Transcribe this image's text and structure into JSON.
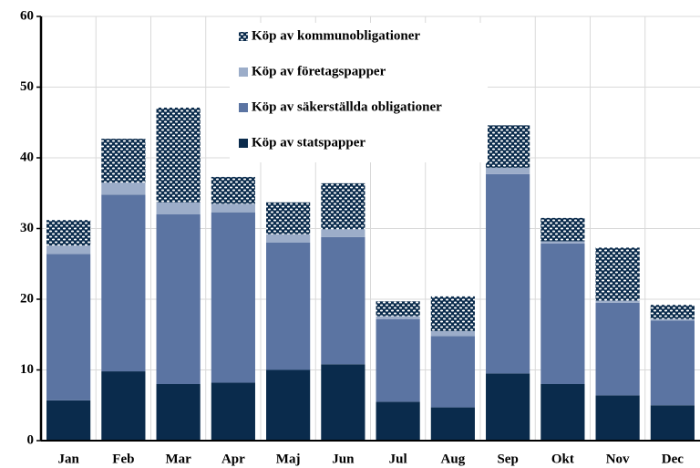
{
  "chart_data": {
    "type": "stacked_bar",
    "categories": [
      "Jan",
      "Feb",
      "Mar",
      "Apr",
      "Maj",
      "Jun",
      "Jul",
      "Aug",
      "Sep",
      "Okt",
      "Nov",
      "Dec"
    ],
    "series": [
      {
        "name": "Köp av statspapper",
        "color": "#0a2b4c",
        "values": [
          5.7,
          9.8,
          8.0,
          8.2,
          10.0,
          10.8,
          5.5,
          4.7,
          9.5,
          8.0,
          6.4,
          5.0
        ]
      },
      {
        "name": "Köp av säkerställda obligationer",
        "color": "#5b74a2",
        "values": [
          20.7,
          25.0,
          24.0,
          24.1,
          18.0,
          18.0,
          11.7,
          10.1,
          28.2,
          19.9,
          13.1,
          12.0
        ]
      },
      {
        "name": "Köp av företagspapper",
        "color": "#9cadc9",
        "values": [
          1.2,
          1.7,
          1.7,
          1.2,
          1.2,
          1.1,
          0.4,
          0.7,
          0.9,
          0.3,
          0.3,
          0.2
        ]
      },
      {
        "name": "Köp av kommunobligationer",
        "color": "#0a2b4c",
        "pattern": "dots",
        "values": [
          3.6,
          6.2,
          13.4,
          3.8,
          4.5,
          6.5,
          2.1,
          4.9,
          6.0,
          3.3,
          7.5,
          2.0
        ]
      }
    ],
    "ylim": [
      0,
      60
    ],
    "yticks": [
      0,
      10,
      20,
      30,
      40,
      50,
      60
    ],
    "grid": true,
    "legend": "top"
  }
}
